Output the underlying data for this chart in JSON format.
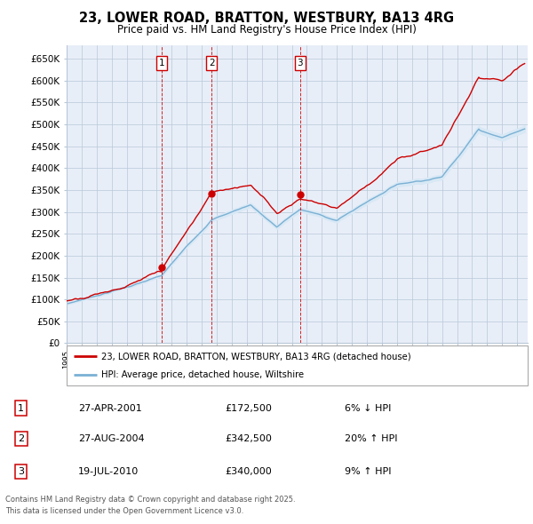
{
  "title_line1": "23, LOWER ROAD, BRATTON, WESTBURY, BA13 4RG",
  "title_line2": "Price paid vs. HM Land Registry's House Price Index (HPI)",
  "legend_line1": "23, LOWER ROAD, BRATTON, WESTBURY, BA13 4RG (detached house)",
  "legend_line2": "HPI: Average price, detached house, Wiltshire",
  "transactions": [
    {
      "num": 1,
      "date": "27-APR-2001",
      "price": 172500,
      "pct": "6%",
      "dir": "↓",
      "year": 2001.32
    },
    {
      "num": 2,
      "date": "27-AUG-2004",
      "price": 342500,
      "pct": "20%",
      "dir": "↑",
      "year": 2004.65
    },
    {
      "num": 3,
      "date": "19-JUL-2010",
      "price": 340000,
      "pct": "9%",
      "dir": "↑",
      "year": 2010.54
    }
  ],
  "footer_line1": "Contains HM Land Registry data © Crown copyright and database right 2025.",
  "footer_line2": "This data is licensed under the Open Government Licence v3.0.",
  "price_color": "#cc0000",
  "hpi_color": "#7ab0d4",
  "hpi_fill_color": "#d8e8f5",
  "background_color": "#e8eef8",
  "grid_color": "#b8c8d8",
  "ylim": [
    0,
    680000
  ],
  "yticks": [
    0,
    50000,
    100000,
    150000,
    200000,
    250000,
    300000,
    350000,
    400000,
    450000,
    500000,
    550000,
    600000,
    650000
  ],
  "xlim_start": 1995.0,
  "xlim_end": 2025.7
}
